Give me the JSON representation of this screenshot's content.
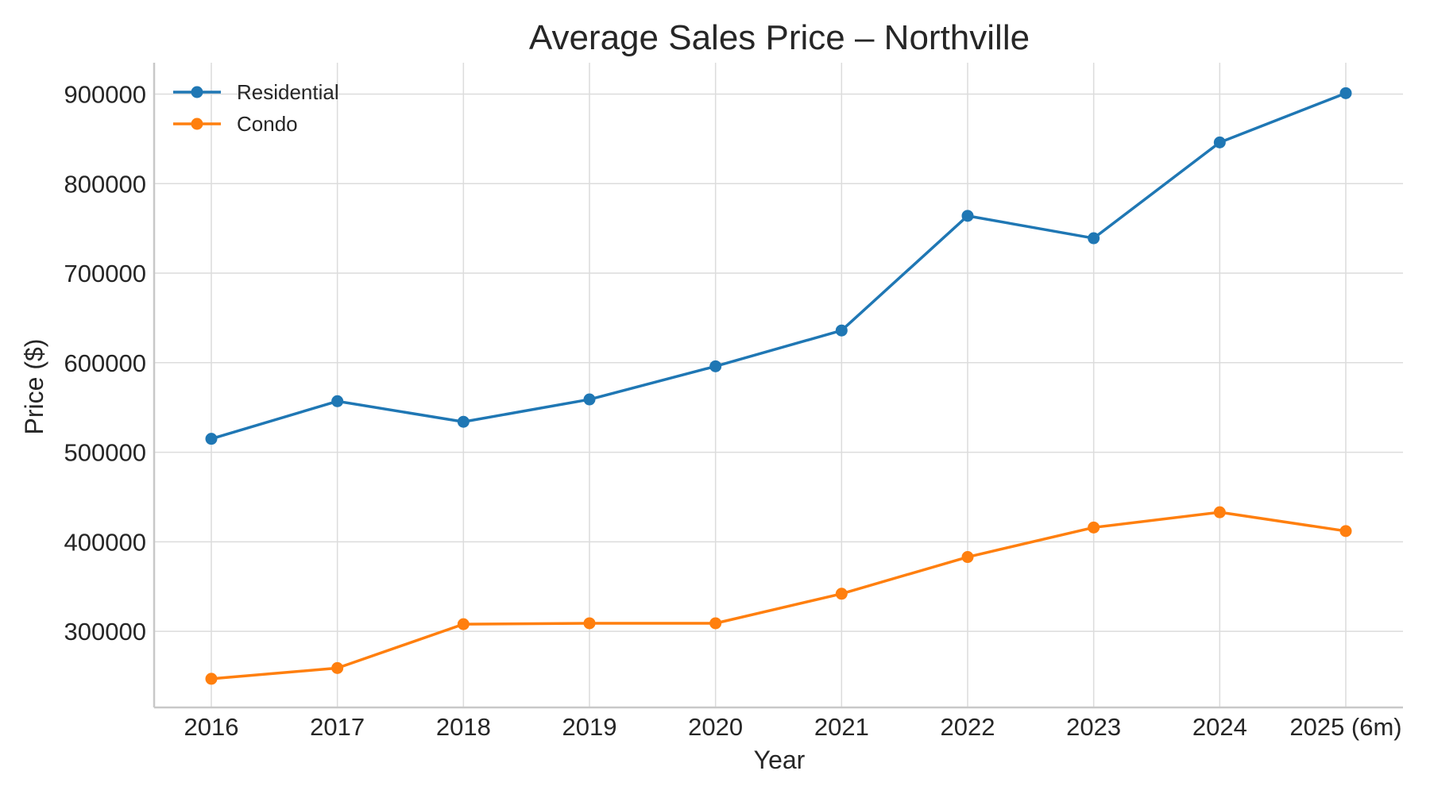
{
  "chart_data": {
    "type": "line",
    "title": "Average Sales Price – Northville",
    "xlabel": "Year",
    "ylabel": "Price ($)",
    "categories": [
      "2016",
      "2017",
      "2018",
      "2019",
      "2020",
      "2021",
      "2022",
      "2023",
      "2024",
      "2025 (6m)"
    ],
    "ylim": [
      215000,
      935000
    ],
    "yticks": [
      300000,
      400000,
      500000,
      600000,
      700000,
      800000,
      900000
    ],
    "grid": true,
    "legend_position": "top-left",
    "series": [
      {
        "name": "Residential",
        "color": "#1f77b4",
        "values": [
          515000,
          557000,
          534000,
          559000,
          596000,
          636000,
          764000,
          739000,
          846000,
          901000
        ]
      },
      {
        "name": "Condo",
        "color": "#ff7f0e",
        "values": [
          247000,
          259000,
          308000,
          309000,
          309000,
          342000,
          383000,
          416000,
          433000,
          412000
        ]
      }
    ]
  }
}
